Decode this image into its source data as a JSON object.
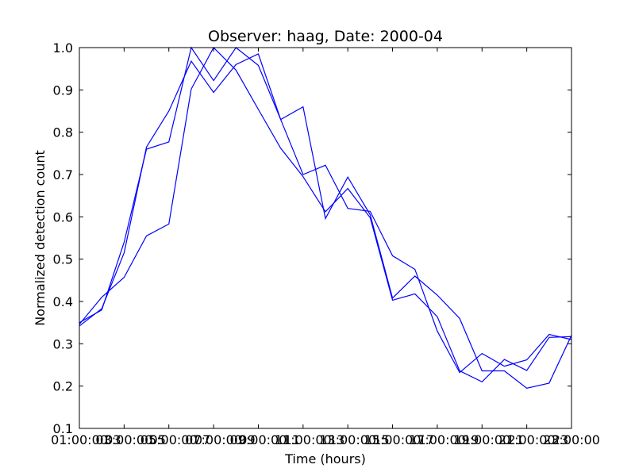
{
  "chart_data": {
    "type": "line",
    "title": "Observer: haag, Date: 2000-04",
    "xlabel": "Time (hours)",
    "ylabel": "Normalized detection count",
    "xlim": [
      1,
      23
    ],
    "ylim": [
      0.1,
      1.0
    ],
    "grid": false,
    "color": "#0000ff",
    "x_ticks": [
      {
        "value": 1,
        "label": "01:00:00"
      },
      {
        "value": 3,
        "label": "03:00:00"
      },
      {
        "value": 5,
        "label": "05:00:00"
      },
      {
        "value": 7,
        "label": "07:00:00"
      },
      {
        "value": 9,
        "label": "09:00:00"
      },
      {
        "value": 11,
        "label": "11:00:00"
      },
      {
        "value": 13,
        "label": "13:00:00"
      },
      {
        "value": 15,
        "label": "15:00:00"
      },
      {
        "value": 17,
        "label": "17:00:00"
      },
      {
        "value": 19,
        "label": "19:00:00"
      },
      {
        "value": 21,
        "label": "21:00:00"
      },
      {
        "value": 23,
        "label": "23:00:00"
      }
    ],
    "x_overlap_labels": [
      {
        "value": 2,
        "label": "03"
      },
      {
        "value": 4,
        "label": "05"
      },
      {
        "value": 6,
        "label": "07"
      },
      {
        "value": 8,
        "label": "09"
      },
      {
        "value": 10,
        "label": "11"
      },
      {
        "value": 12,
        "label": "13"
      },
      {
        "value": 14,
        "label": "15"
      },
      {
        "value": 16,
        "label": "17"
      },
      {
        "value": 18,
        "label": "19"
      },
      {
        "value": 20,
        "label": "21"
      },
      {
        "value": 22,
        "label": "23"
      }
    ],
    "y_ticks": [
      0.1,
      0.2,
      0.3,
      0.4,
      0.5,
      0.6,
      0.7,
      0.8,
      0.9,
      1.0
    ],
    "y_tick_labels": [
      "0.1",
      "0.2",
      "0.3",
      "0.4",
      "0.5",
      "0.6",
      "0.7",
      "0.8",
      "0.9",
      "1.0"
    ],
    "series": [
      {
        "x": [
          1,
          2,
          3,
          4,
          5,
          6,
          7,
          8,
          9,
          10,
          11,
          12,
          13,
          14,
          15,
          16,
          17,
          18,
          19,
          20,
          21,
          22,
          23
        ],
        "y": [
          0.35,
          0.38,
          0.54,
          0.76,
          0.777,
          1.0,
          0.922,
          1.0,
          0.958,
          0.83,
          0.86,
          0.596,
          0.694,
          0.605,
          0.408,
          0.46,
          0.415,
          0.36,
          0.236,
          0.236,
          0.195,
          0.207,
          0.32
        ]
      },
      {
        "x": [
          1,
          2,
          3,
          4,
          5,
          6,
          7,
          8,
          9,
          10,
          11,
          12,
          13,
          14,
          15,
          16,
          17,
          18,
          19,
          20,
          21,
          22,
          23
        ],
        "y": [
          0.342,
          0.383,
          0.515,
          0.765,
          0.85,
          0.968,
          0.894,
          0.96,
          0.985,
          0.83,
          0.7,
          0.722,
          0.62,
          0.613,
          0.508,
          0.476,
          0.33,
          0.232,
          0.277,
          0.247,
          0.262,
          0.322,
          0.31
        ]
      },
      {
        "x": [
          1,
          2,
          3,
          4,
          5,
          6,
          7,
          8,
          9,
          10,
          11,
          12,
          13,
          14,
          15,
          16,
          17,
          18,
          19,
          20,
          21,
          22,
          23
        ],
        "y": [
          0.346,
          0.41,
          0.457,
          0.555,
          0.583,
          0.902,
          1.0,
          0.947,
          0.854,
          0.762,
          0.695,
          0.612,
          0.667,
          0.598,
          0.403,
          0.418,
          0.364,
          0.236,
          0.21,
          0.263,
          0.237,
          0.315,
          0.317
        ]
      }
    ]
  }
}
